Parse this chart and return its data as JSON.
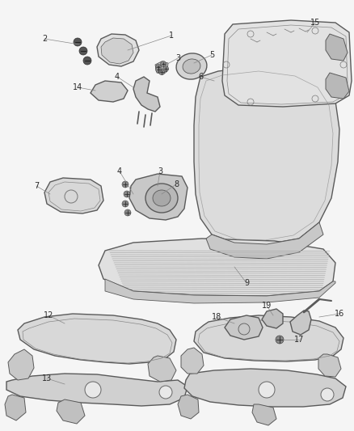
{
  "background_color": "#f5f5f5",
  "line_color": "#5a5a5a",
  "label_color": "#2a2a2a",
  "label_fontsize": 7,
  "fig_width": 4.38,
  "fig_height": 5.33,
  "dpi": 100
}
